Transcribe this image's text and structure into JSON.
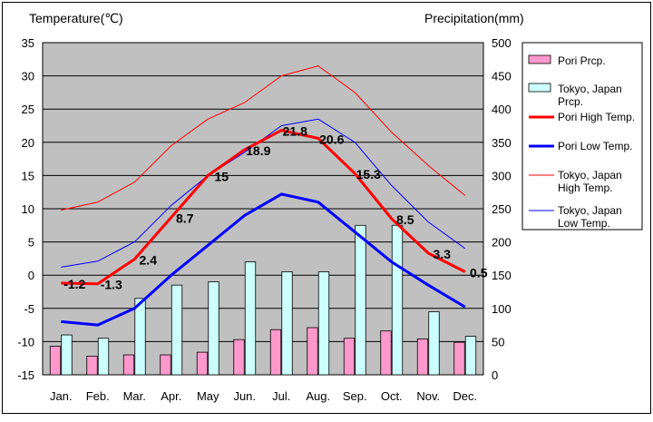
{
  "chart_data": {
    "type": "bar-line-combo",
    "title_left": "Temperature(℃)",
    "title_right": "Precipitation(mm)",
    "left_ticks": [
      "35",
      "30",
      "25",
      "20",
      "15",
      "10",
      "5",
      "0",
      "-5",
      "-10",
      "-15"
    ],
    "right_ticks": [
      "500",
      "450",
      "400",
      "350",
      "300",
      "250",
      "200",
      "150",
      "100",
      "50",
      "0"
    ],
    "y_left_range": [
      -15,
      35
    ],
    "y_right_range": [
      0,
      500
    ],
    "categories": [
      "Jan.",
      "Feb.",
      "Mar.",
      "Apr.",
      "May",
      "Jun.",
      "Jul.",
      "Aug.",
      "Sep.",
      "Oct.",
      "Nov.",
      "Dec."
    ],
    "bars": [
      {
        "name": "Pori Prcp.",
        "color": "#ff99cc",
        "values": [
          43,
          28,
          30,
          30,
          34,
          53,
          68,
          71,
          55,
          66,
          54,
          49
        ]
      },
      {
        "name": "Tokyo, Japan Prcp.",
        "color": "#ccffff",
        "values": [
          60,
          55,
          115,
          135,
          140,
          170,
          155,
          155,
          225,
          225,
          95,
          58
        ]
      }
    ],
    "lines": [
      {
        "name": "Pori High Temp.",
        "color": "#ff0000",
        "width": 3,
        "values": [
          -1.2,
          -1.3,
          2.4,
          8.7,
          15,
          18.9,
          21.8,
          20.6,
          15.3,
          8.5,
          3.3,
          0.5
        ],
        "labels": [
          "-1.2",
          "-1.3",
          "2.4",
          "8.7",
          "15",
          "18.9",
          "21.8",
          "20.6",
          "15.3",
          "8.5",
          "3.3",
          "0.5"
        ]
      },
      {
        "name": "Pori Low Temp.",
        "color": "#0000ff",
        "width": 3,
        "values": [
          -7,
          -7.5,
          -5,
          0,
          4.5,
          9,
          12.2,
          11,
          6.5,
          2,
          -1.5,
          -4.8
        ]
      },
      {
        "name": "Tokyo, Japan High Temp.",
        "color": "#ff0000",
        "width": 1,
        "values": [
          9.8,
          11,
          14,
          19.5,
          23.5,
          26,
          30,
          31.5,
          27.5,
          21.5,
          16.5,
          12
        ]
      },
      {
        "name": "Tokyo, Japan Low Temp.",
        "color": "#0000ff",
        "width": 1,
        "values": [
          1.2,
          2.1,
          5,
          10.5,
          15,
          18.5,
          22.5,
          23.5,
          20,
          13.5,
          8,
          4
        ]
      }
    ],
    "legend": [
      {
        "kind": "box",
        "color": "#ff99cc",
        "lines": [
          "Pori Prcp."
        ]
      },
      {
        "kind": "box",
        "color": "#ccffff",
        "lines": [
          "Tokyo, Japan",
          "Prcp."
        ]
      },
      {
        "kind": "line",
        "color": "#ff0000",
        "width": 3,
        "lines": [
          "Pori High Temp."
        ]
      },
      {
        "kind": "line",
        "color": "#0000ff",
        "width": 3,
        "lines": [
          "Pori Low Temp."
        ]
      },
      {
        "kind": "line",
        "color": "#ff0000",
        "width": 1,
        "lines": [
          "Tokyo, Japan",
          "High Temp."
        ]
      },
      {
        "kind": "line",
        "color": "#0000ff",
        "width": 1,
        "lines": [
          "Tokyo, Japan",
          "Low Temp."
        ]
      }
    ],
    "legend_position": "right",
    "plot_background": "#c0c0c0",
    "gridlines": true
  }
}
